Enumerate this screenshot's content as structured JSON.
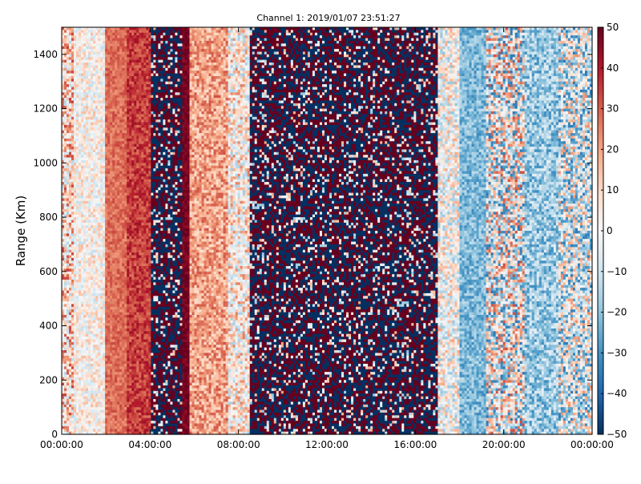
{
  "chart_data": {
    "type": "heatmap",
    "title": "Channel 1: 2019/01/07 23:51:27",
    "xlabel": "",
    "ylabel": "Range (Km)",
    "x_tick_labels": [
      "00:00:00",
      "04:00:00",
      "08:00:00",
      "12:00:00",
      "16:00:00",
      "20:00:00",
      "00:00:00"
    ],
    "x_tick_hours": [
      0,
      4,
      8,
      12,
      16,
      20,
      24
    ],
    "xlim_hours": [
      0,
      24
    ],
    "y_ticks": [
      0,
      200,
      400,
      600,
      800,
      1000,
      1200,
      1400
    ],
    "ylim": [
      0,
      1500
    ],
    "colorbar": {
      "ticks": [
        50,
        40,
        30,
        20,
        10,
        0,
        -10,
        -20,
        -30,
        -40,
        -50
      ],
      "range": [
        -50,
        50
      ],
      "colormap": "RdBu_r",
      "colors": [
        "#053061",
        "#2166ac",
        "#4393c3",
        "#92c5de",
        "#d1e5f0",
        "#f7f7f7",
        "#fddbc7",
        "#f4a582",
        "#d6604d",
        "#b2182b",
        "#67001f"
      ]
    },
    "grid": false,
    "bands": [
      {
        "start_hour": 0.0,
        "end_hour": 0.5,
        "mean": 10,
        "noise": 25
      },
      {
        "start_hour": 0.5,
        "end_hour": 2.0,
        "mean": 2,
        "noise": 14
      },
      {
        "start_hour": 2.0,
        "end_hour": 3.0,
        "mean": 28,
        "noise": 6
      },
      {
        "start_hour": 3.0,
        "end_hour": 4.0,
        "mean": 35,
        "noise": 8
      },
      {
        "start_hour": 4.0,
        "end_hour": 5.5,
        "mean": 0,
        "noise": 60
      },
      {
        "start_hour": 5.5,
        "end_hour": 5.8,
        "mean": 48,
        "noise": 4
      },
      {
        "start_hour": 5.8,
        "end_hour": 7.5,
        "mean": 20,
        "noise": 12
      },
      {
        "start_hour": 7.5,
        "end_hour": 8.5,
        "mean": 4,
        "noise": 22
      },
      {
        "start_hour": 8.5,
        "end_hour": 17.0,
        "mean": 0,
        "noise": 95
      },
      {
        "start_hour": 17.0,
        "end_hour": 18.0,
        "mean": 0,
        "noise": 20
      },
      {
        "start_hour": 18.0,
        "end_hour": 19.2,
        "mean": -22,
        "noise": 10
      },
      {
        "start_hour": 19.2,
        "end_hour": 21.0,
        "mean": -2,
        "noise": 35
      },
      {
        "start_hour": 21.0,
        "end_hour": 22.5,
        "mean": -18,
        "noise": 14
      },
      {
        "start_hour": 22.5,
        "end_hour": 24.0,
        "mean": -6,
        "noise": 30
      }
    ]
  }
}
